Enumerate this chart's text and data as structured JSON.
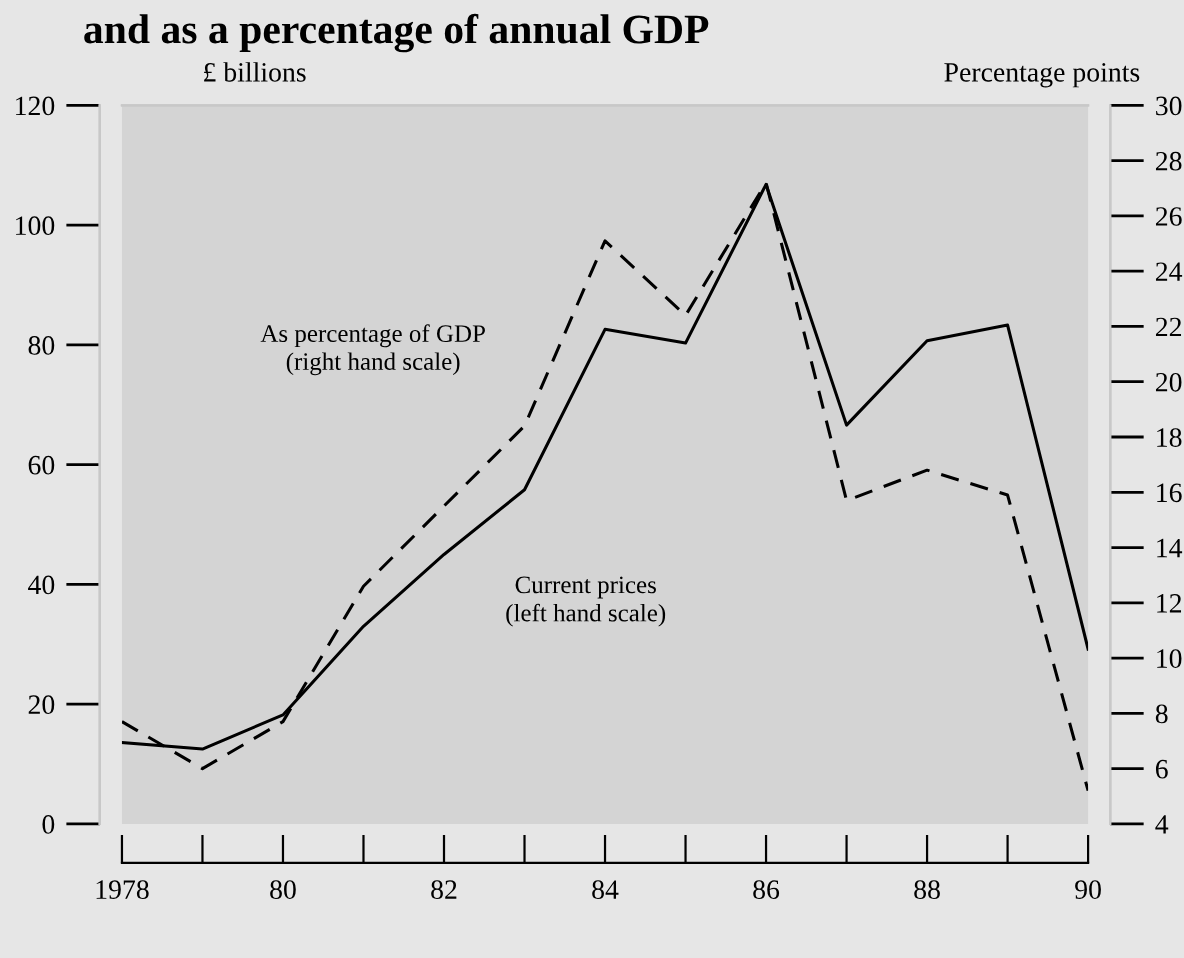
{
  "chart_data": {
    "type": "line",
    "title": "and as a percentage of annual GDP",
    "ylabel": "£ billions",
    "y2label": "Percentage points",
    "x": [
      1978,
      1979,
      1980,
      1981,
      1982,
      1983,
      1984,
      1985,
      1986,
      1987,
      1988,
      1989,
      1990
    ],
    "series": [
      {
        "name": "Current prices\n(left hand scale)",
        "color": "#000000",
        "line_style": "solid",
        "values": [
          13.6,
          12.5,
          18.2,
          33,
          45,
          55.8,
          82.6,
          80.3,
          106.8,
          66.6,
          80.7,
          83.3,
          29.2
        ]
      },
      {
        "name": "As percentage of GDP\n(right hand scale)",
        "color": "#000000",
        "line_style": "dashed",
        "axis": "y2",
        "values": [
          7.7,
          6.0,
          7.7,
          12.6,
          15.5,
          18.4,
          25.1,
          22.4,
          27.2,
          15.7,
          16.8,
          15.9,
          5.2
        ]
      }
    ],
    "xlim": [
      1978,
      1990
    ],
    "xticks": [
      {
        "value": 1978,
        "label": "1978"
      },
      {
        "value": 1979,
        "label": null
      },
      {
        "value": 1980,
        "label": "80"
      },
      {
        "value": 1981,
        "label": null
      },
      {
        "value": 1982,
        "label": "82"
      },
      {
        "value": 1983,
        "label": null
      },
      {
        "value": 1984,
        "label": "84"
      },
      {
        "value": 1985,
        "label": null
      },
      {
        "value": 1986,
        "label": "86"
      },
      {
        "value": 1987,
        "label": null
      },
      {
        "value": 1988,
        "label": "88"
      },
      {
        "value": 1989,
        "label": null
      },
      {
        "value": 1990,
        "label": "90"
      }
    ],
    "ylim": [
      0,
      120
    ],
    "yticks": [
      0,
      20,
      40,
      60,
      80,
      100,
      120
    ],
    "y2lim": [
      4,
      30
    ],
    "y2ticks": [
      4,
      6,
      8,
      10,
      12,
      14,
      16,
      18,
      20,
      22,
      24,
      26,
      28,
      30
    ],
    "grid": false,
    "legend": false,
    "marker": "none"
  }
}
